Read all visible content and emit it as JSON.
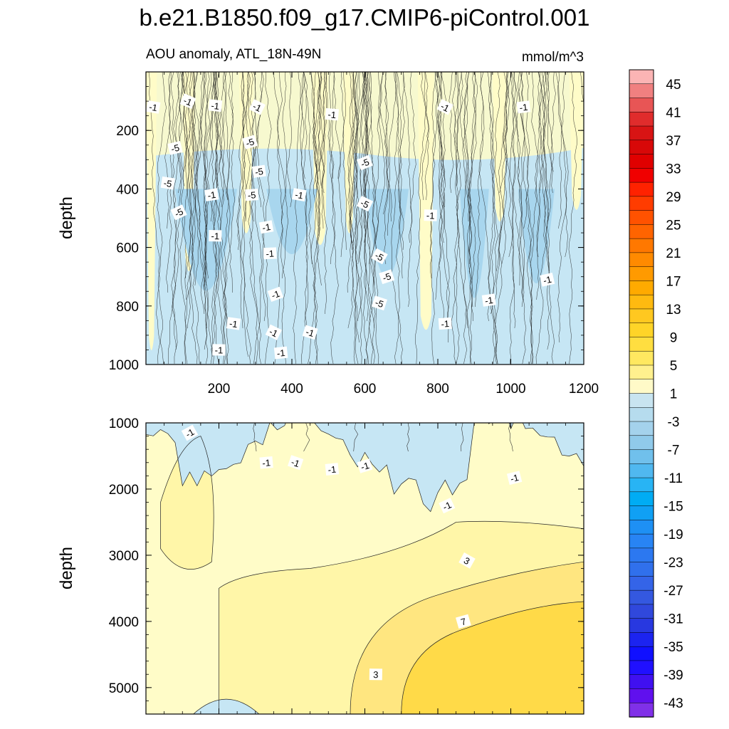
{
  "title": "b.e21.B1850.f09_g17.CMIP6-piControl.001",
  "chart_data": {
    "type": "heatmap",
    "subtitle_left": "AOU anomaly, ATL_18N-49N",
    "subtitle_right": "mmol/m^3",
    "x_range": [
      0,
      1200
    ],
    "x_ticks": [
      "200",
      "400",
      "600",
      "800",
      "1000",
      "1200"
    ],
    "panels": [
      {
        "name": "upper",
        "ylabel": "depth",
        "y_range": [
          0,
          1000
        ],
        "y_ticks": [
          "200",
          "400",
          "600",
          "800",
          "1000"
        ],
        "contour_labels": [
          {
            "x": 20,
            "y": 120,
            "text": "-1"
          },
          {
            "x": 115,
            "y": 100,
            "text": "-1"
          },
          {
            "x": 190,
            "y": 115,
            "text": "-1"
          },
          {
            "x": 305,
            "y": 120,
            "text": "-1"
          },
          {
            "x": 510,
            "y": 145,
            "text": "-1"
          },
          {
            "x": 820,
            "y": 120,
            "text": "-1"
          },
          {
            "x": 1035,
            "y": 120,
            "text": "-1"
          },
          {
            "x": 285,
            "y": 240,
            "text": "-5"
          },
          {
            "x": 80,
            "y": 260,
            "text": "-5"
          },
          {
            "x": 310,
            "y": 340,
            "text": "-5"
          },
          {
            "x": 600,
            "y": 310,
            "text": "-5"
          },
          {
            "x": 60,
            "y": 380,
            "text": "-5"
          },
          {
            "x": 290,
            "y": 420,
            "text": "-5"
          },
          {
            "x": 600,
            "y": 450,
            "text": "-5"
          },
          {
            "x": 90,
            "y": 480,
            "text": "-5"
          },
          {
            "x": 180,
            "y": 420,
            "text": "-1"
          },
          {
            "x": 420,
            "y": 420,
            "text": "-1"
          },
          {
            "x": 780,
            "y": 490,
            "text": "-1"
          },
          {
            "x": 330,
            "y": 530,
            "text": "-1"
          },
          {
            "x": 190,
            "y": 560,
            "text": "-1"
          },
          {
            "x": 340,
            "y": 620,
            "text": "-1"
          },
          {
            "x": 640,
            "y": 630,
            "text": "-5"
          },
          {
            "x": 660,
            "y": 700,
            "text": "-5"
          },
          {
            "x": 355,
            "y": 760,
            "text": "-1"
          },
          {
            "x": 640,
            "y": 790,
            "text": "-5"
          },
          {
            "x": 240,
            "y": 860,
            "text": "-1"
          },
          {
            "x": 350,
            "y": 890,
            "text": "-1"
          },
          {
            "x": 450,
            "y": 890,
            "text": "-1"
          },
          {
            "x": 200,
            "y": 950,
            "text": "-1"
          },
          {
            "x": 370,
            "y": 960,
            "text": "-1"
          },
          {
            "x": 820,
            "y": 860,
            "text": "-1"
          },
          {
            "x": 940,
            "y": 780,
            "text": "-1"
          },
          {
            "x": 1100,
            "y": 710,
            "text": "-1"
          }
        ]
      },
      {
        "name": "lower",
        "ylabel": "depth",
        "y_range": [
          1000,
          5400
        ],
        "y_ticks": [
          "1000",
          "2000",
          "3000",
          "4000",
          "5000"
        ],
        "contour_labels": [
          {
            "x": 120,
            "y": 1150,
            "text": "-1"
          },
          {
            "x": 330,
            "y": 1600,
            "text": "-1"
          },
          {
            "x": 410,
            "y": 1600,
            "text": "-1"
          },
          {
            "x": 510,
            "y": 1700,
            "text": "-1"
          },
          {
            "x": 600,
            "y": 1650,
            "text": "-1"
          },
          {
            "x": 825,
            "y": 2250,
            "text": "-1"
          },
          {
            "x": 1010,
            "y": 1830,
            "text": "-1"
          },
          {
            "x": 880,
            "y": 3080,
            "text": "3"
          },
          {
            "x": 870,
            "y": 4000,
            "text": "7"
          },
          {
            "x": 630,
            "y": 4800,
            "text": "3"
          }
        ]
      }
    ],
    "colorbar": {
      "levels": [
        45,
        43,
        41,
        39,
        37,
        35,
        33,
        31,
        29,
        27,
        25,
        23,
        21,
        19,
        17,
        15,
        13,
        11,
        9,
        7,
        5,
        3,
        1,
        -1,
        -3,
        -5,
        -7,
        -9,
        -11,
        -13,
        -15,
        -17,
        -19,
        -21,
        -23,
        -25,
        -27,
        -29,
        -31,
        -33,
        -35,
        -37,
        -39,
        -41,
        -43,
        -45
      ],
      "tick_labels": [
        "45",
        "41",
        "37",
        "33",
        "29",
        "25",
        "21",
        "17",
        "13",
        "9",
        "5",
        "1",
        "-3",
        "-7",
        "-11",
        "-15",
        "-19",
        "-23",
        "-27",
        "-31",
        "-35",
        "-39",
        "-43"
      ],
      "colors": [
        "#fbb4b4",
        "#f08080",
        "#e85555",
        "#e02c2c",
        "#d81414",
        "#d80808",
        "#e00000",
        "#f00000",
        "#ff2200",
        "#ff3c00",
        "#ff5200",
        "#ff6400",
        "#ff7800",
        "#ff8a00",
        "#ff9a00",
        "#ffaa00",
        "#ffba10",
        "#ffc820",
        "#ffd428",
        "#ffde40",
        "#ffe860",
        "#fff08e",
        "#fffac8",
        "#c8e4f0",
        "#b6dcee",
        "#a4d2ec",
        "#90caea",
        "#70c0ec",
        "#50b8f0",
        "#28b4f4",
        "#00acf4",
        "#10a0f4",
        "#1e90f4",
        "#2884f4",
        "#2c78f0",
        "#3070ec",
        "#3464e8",
        "#3458e0",
        "#3048dc",
        "#2838e0",
        "#1c24f0",
        "#1010ff",
        "#2010ff",
        "#4010f0",
        "#6010ee",
        "#8030e8"
      ]
    },
    "fill_colors": {
      "pos1": "#fffcc8",
      "pos2": "#fff6a8",
      "pos3": "#ffe680",
      "pos4": "#ffda48",
      "neg1": "#c6e6f4",
      "neg2": "#a8d6ee"
    }
  }
}
